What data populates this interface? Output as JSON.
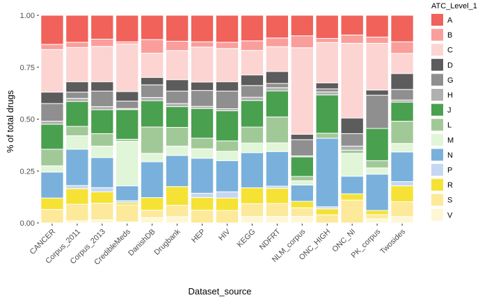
{
  "chart_data": {
    "type": "bar",
    "stacked": true,
    "normalized": true,
    "title": "",
    "xlabel": "Dataset_source",
    "ylabel": "% of total drugs",
    "ylim": [
      0,
      1
    ],
    "yticks": [
      "0.00",
      "0.25",
      "0.50",
      "0.75",
      "1.00"
    ],
    "grid": false,
    "legend": {
      "title": "ATC_Level_1",
      "position": "right"
    },
    "categories": [
      "CANCER",
      "Corpus_2011",
      "Corpus_2013",
      "CredibleMeds",
      "DanishDB",
      "Drugbank",
      "HEP",
      "HIV",
      "KEGG",
      "NDFRT",
      "NLM_corpus",
      "ONC_HIGH",
      "ONC_NI",
      "PK_corpus",
      "Twosides"
    ],
    "series": [
      {
        "name": "V",
        "color": "#fdf7d4",
        "values": [
          0.0,
          0.01,
          0.015,
          0.005,
          0.025,
          0.03,
          0.0,
          0.0,
          0.03,
          0.03,
          0.03,
          0.0,
          0.0,
          0.02,
          0.03
        ]
      },
      {
        "name": "S",
        "color": "#fde99a",
        "values": [
          0.065,
          0.08,
          0.08,
          0.08,
          0.035,
          0.055,
          0.06,
          0.06,
          0.06,
          0.06,
          0.04,
          0.04,
          0.11,
          0.02,
          0.07
        ]
      },
      {
        "name": "R",
        "color": "#f5e234",
        "values": [
          0.055,
          0.075,
          0.055,
          0.01,
          0.06,
          0.09,
          0.06,
          0.06,
          0.075,
          0.07,
          0.03,
          0.03,
          0.03,
          0.02,
          0.075
        ]
      },
      {
        "name": "P",
        "color": "#c6d7f1",
        "values": [
          0.0,
          0.015,
          0.02,
          0.01,
          0.0,
          0.0,
          0.02,
          0.03,
          0.0,
          0.01,
          0.0,
          0.01,
          0.0,
          0.0,
          0.02
        ]
      },
      {
        "name": "N",
        "color": "#79b1dc",
        "values": [
          0.125,
          0.175,
          0.145,
          0.07,
          0.17,
          0.15,
          0.165,
          0.15,
          0.165,
          0.16,
          0.075,
          0.34,
          0.085,
          0.175,
          0.14
        ]
      },
      {
        "name": "M",
        "color": "#e1f5d8",
        "values": [
          0.03,
          0.065,
          0.055,
          0.21,
          0.04,
          0.045,
          0.045,
          0.045,
          0.045,
          0.04,
          0.02,
          0.0,
          0.11,
          0.03,
          0.04
        ]
      },
      {
        "name": "L",
        "color": "#a1c998",
        "values": [
          0.08,
          0.045,
          0.06,
          0.01,
          0.125,
          0.09,
          0.05,
          0.05,
          0.075,
          0.12,
          0.02,
          0.025,
          0.015,
          0.035,
          0.105
        ]
      },
      {
        "name": "J",
        "color": "#49a04e",
        "values": [
          0.12,
          0.12,
          0.115,
          0.14,
          0.125,
          0.1,
          0.14,
          0.145,
          0.125,
          0.12,
          0.09,
          0.19,
          0.0,
          0.155,
          0.09
        ]
      },
      {
        "name": "H",
        "color": "#b0b0b0",
        "values": [
          0.015,
          0.015,
          0.015,
          0.005,
          0.015,
          0.015,
          0.01,
          0.01,
          0.015,
          0.015,
          0.005,
          0.015,
          0.02,
          0.0,
          0.01
        ]
      },
      {
        "name": "G",
        "color": "#8f8f8f",
        "values": [
          0.085,
          0.03,
          0.075,
          0.035,
          0.06,
          0.06,
          0.075,
          0.085,
          0.055,
          0.02,
          0.075,
          0.015,
          0.06,
          0.16,
          0.05
        ]
      },
      {
        "name": "D",
        "color": "#5c5c5c",
        "values": [
          0.055,
          0.05,
          0.045,
          0.045,
          0.035,
          0.055,
          0.04,
          0.045,
          0.05,
          0.055,
          0.025,
          0.03,
          0.075,
          0.025,
          0.075
        ]
      },
      {
        "name": "C",
        "color": "#fcd4d2",
        "values": [
          0.205,
          0.165,
          0.17,
          0.225,
          0.115,
          0.14,
          0.165,
          0.16,
          0.115,
          0.115,
          0.4,
          0.2,
          0.36,
          0.225,
          0.095
        ]
      },
      {
        "name": "B",
        "color": "#fa9e9c",
        "values": [
          0.025,
          0.025,
          0.035,
          0.01,
          0.065,
          0.045,
          0.025,
          0.03,
          0.045,
          0.04,
          0.055,
          0.02,
          0.04,
          0.03,
          0.055
        ]
      },
      {
        "name": "A",
        "color": "#f0625a",
        "values": [
          0.14,
          0.13,
          0.115,
          0.125,
          0.115,
          0.125,
          0.125,
          0.13,
          0.12,
          0.105,
          0.095,
          0.115,
          0.095,
          0.105,
          0.125
        ]
      }
    ]
  }
}
